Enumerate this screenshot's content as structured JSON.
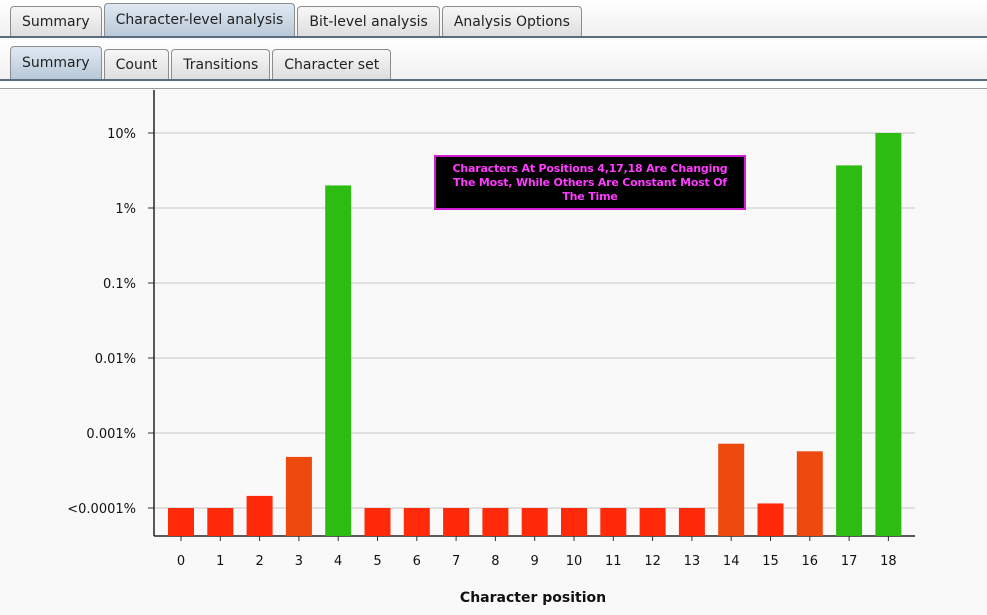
{
  "tabs": [
    {
      "label": "Summary"
    },
    {
      "label": "Character-level analysis",
      "active": true
    },
    {
      "label": "Bit-level analysis"
    },
    {
      "label": "Analysis Options"
    }
  ],
  "subtabs": [
    {
      "label": "Summary",
      "active": true
    },
    {
      "label": "Count"
    },
    {
      "label": "Transitions"
    },
    {
      "label": "Character set"
    }
  ],
  "callout": {
    "text": "Characters At Positions 4,17,18 Are Changing The Most, While Others Are Constant Most Of The Time"
  },
  "chart_data": {
    "type": "bar",
    "xlabel": "Character position",
    "ylabel": "",
    "y_scale": "log",
    "y_ticks": [
      {
        "label": "<0.0001%",
        "value": 0.0001
      },
      {
        "label": "0.001%",
        "value": 0.001
      },
      {
        "label": "0.01%",
        "value": 0.01
      },
      {
        "label": "0.1%",
        "value": 0.1
      },
      {
        "label": "1%",
        "value": 1
      },
      {
        "label": "10%",
        "value": 10
      }
    ],
    "grid": true,
    "categories": [
      "0",
      "1",
      "2",
      "3",
      "4",
      "5",
      "6",
      "7",
      "8",
      "9",
      "10",
      "11",
      "12",
      "13",
      "14",
      "15",
      "16",
      "17",
      "18"
    ],
    "values": [
      0.0001,
      0.0001,
      0.000145,
      0.00048,
      2,
      0.0001,
      0.0001,
      0.0001,
      0.0001,
      0.0001,
      0.0001,
      0.0001,
      0.0001,
      0.0001,
      0.00072,
      0.000115,
      0.00057,
      3.7,
      10
    ],
    "colors": {
      "low": "#ff2a0a",
      "mid": "#ee4a10",
      "high": "#2cbc12"
    },
    "bar_color_class": [
      "low",
      "low",
      "low",
      "mid",
      "high",
      "low",
      "low",
      "low",
      "low",
      "low",
      "low",
      "low",
      "low",
      "low",
      "mid",
      "low",
      "mid",
      "high",
      "high"
    ]
  }
}
